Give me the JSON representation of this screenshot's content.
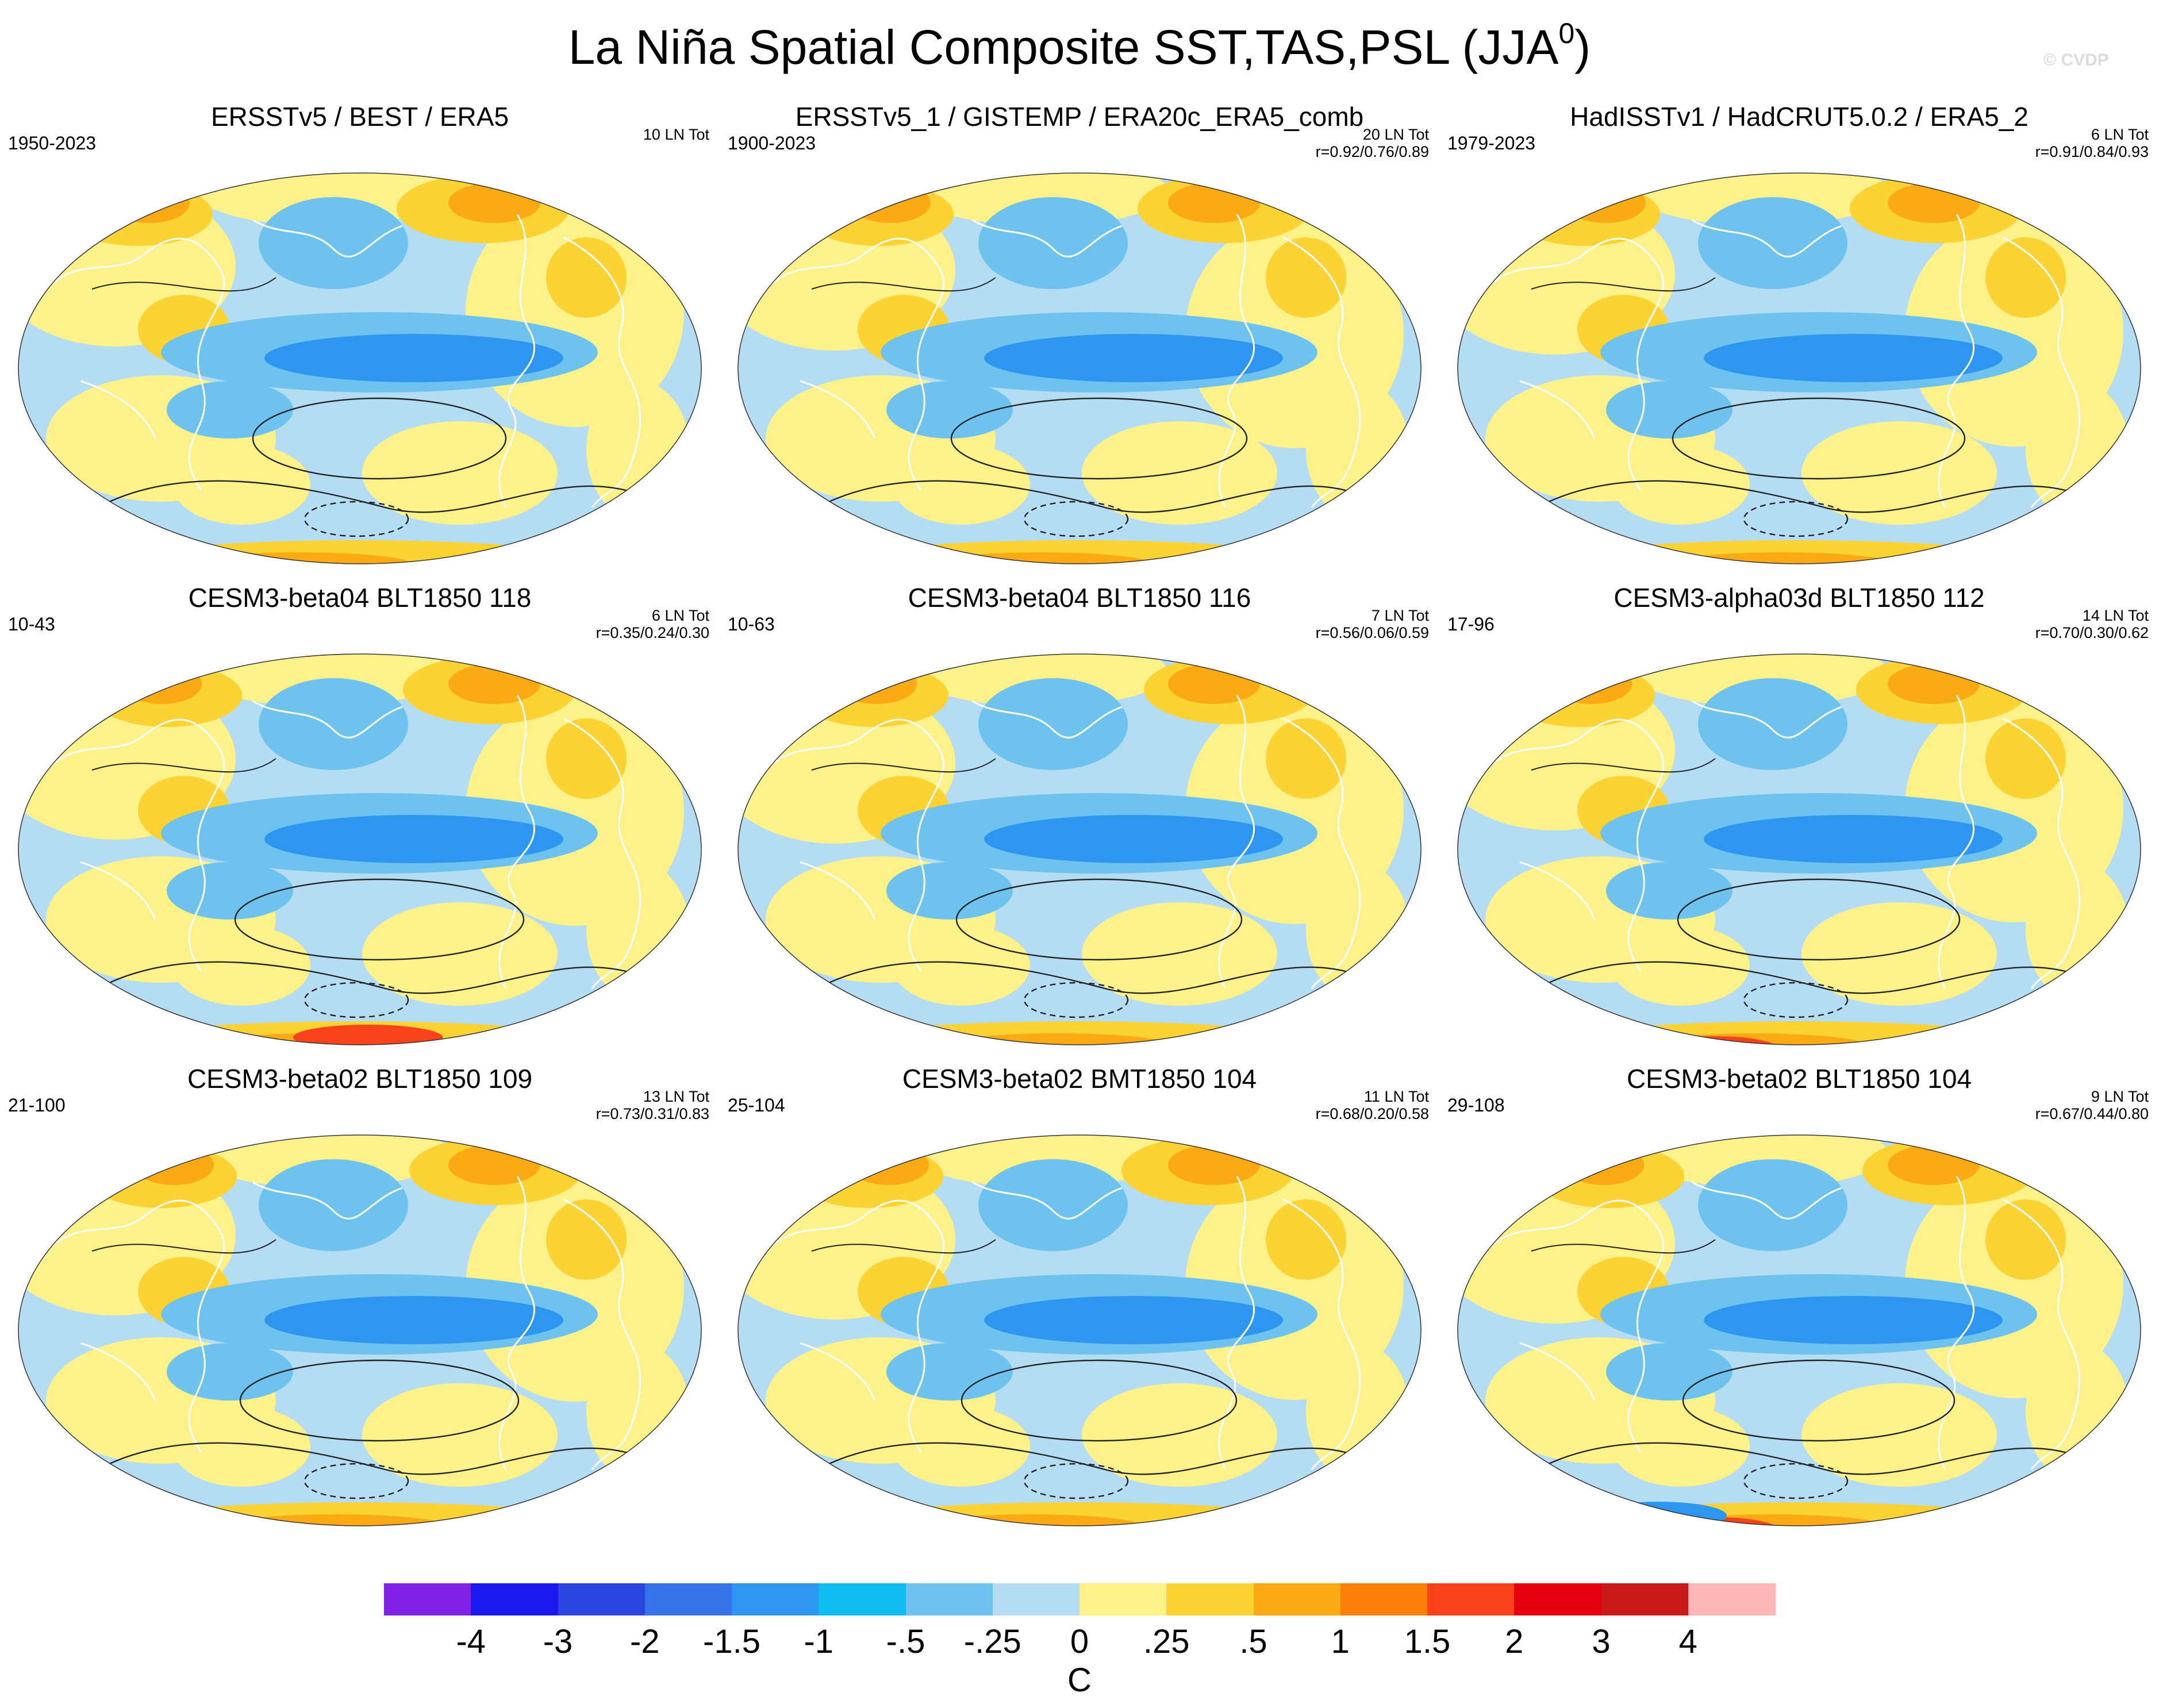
{
  "figure": {
    "title_main": "La Niña Spatial Composite SST,TAS,PSL (JJA",
    "title_sup": "0",
    "title_close": ")",
    "watermark": "© CVDP"
  },
  "panels": [
    {
      "title": "ERSSTv5 / BEST / ERA5",
      "years": "1950-2023",
      "ln": "10 LN Tot",
      "r": ""
    },
    {
      "title": "ERSSTv5_1 / GISTEMP / ERA20c_ERA5_comb",
      "years": "1900-2023",
      "ln": "20 LN Tot",
      "r": "r=0.92/0.76/0.89"
    },
    {
      "title": "HadISSTv1 / HadCRUT5.0.2 / ERA5_2",
      "years": "1979-2023",
      "ln": "6 LN Tot",
      "r": "r=0.91/0.84/0.93"
    },
    {
      "title": "CESM3-beta04 BLT1850 118",
      "years": "10-43",
      "ln": "6 LN Tot",
      "r": "r=0.35/0.24/0.30"
    },
    {
      "title": "CESM3-beta04 BLT1850 116",
      "years": "10-63",
      "ln": "7 LN Tot",
      "r": "r=0.56/0.06/0.59"
    },
    {
      "title": "CESM3-alpha03d BLT1850 112",
      "years": "17-96",
      "ln": "14 LN Tot",
      "r": "r=0.70/0.30/0.62"
    },
    {
      "title": "CESM3-beta02 BLT1850 109",
      "years": "21-100",
      "ln": "13 LN Tot",
      "r": "r=0.73/0.31/0.83"
    },
    {
      "title": "CESM3-beta02 BMT1850 104",
      "years": "25-104",
      "ln": "11 LN Tot",
      "r": "r=0.68/0.20/0.58"
    },
    {
      "title": "CESM3-beta02 BLT1850 104",
      "years": "29-108",
      "ln": "9 LN Tot",
      "r": "r=0.67/0.44/0.80"
    }
  ],
  "colorbar": {
    "units": "C",
    "ticks": [
      "-4",
      "-3",
      "-2",
      "-1.5",
      "-1",
      "-.5",
      "-.25",
      "0",
      ".25",
      ".5",
      "1",
      "1.5",
      "2",
      "3",
      "4"
    ],
    "colors": [
      "#7f22e6",
      "#1c18f0",
      "#2b45e0",
      "#3573e8",
      "#2d96f0",
      "#0ebcf2",
      "#6ec3ee",
      "#b4dcf2",
      "#fdf18a",
      "#fdd334",
      "#fcaa14",
      "#fb7e08",
      "#f8421a",
      "#e6000d",
      "#c81a1a",
      "#ffb6b6"
    ]
  },
  "map_colors": {
    "ocean_blue": "#b4dcf2",
    "mid_blue": "#6ec3ee",
    "deep_blue": "#2d96f0",
    "yellow": "#fdf18a",
    "gold": "#fdd334",
    "orange": "#fcaa14",
    "red": "#f8421a",
    "coast": "#ffffff",
    "contour": "#222222"
  }
}
